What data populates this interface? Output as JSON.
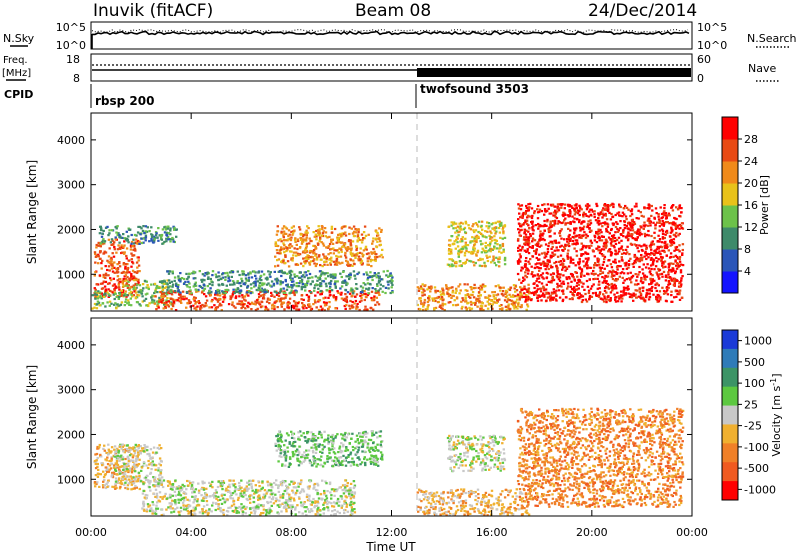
{
  "header": {
    "station": "Inuvik (fitACF)",
    "beam": "Beam 08",
    "date": "24/Dec/2014"
  },
  "top_panels": {
    "nsky_label": "N.Sky",
    "nsky_ticks": [
      "10^5",
      "10^0"
    ],
    "nsearch_label": "N.Search",
    "nsearch_ticks": [
      "10^5",
      "10^0"
    ],
    "freq_label": "Freq.",
    "freq_unit": "[MHz]",
    "freq_ticks": [
      "18",
      "8"
    ],
    "nave_label": "Nave",
    "nave_ticks": [
      "60",
      "0"
    ],
    "cpid_label": "CPID",
    "cpid_segments": [
      {
        "name": "rbsp 200",
        "start_hour": 0
      },
      {
        "name": "twofsound 3503",
        "start_hour": 13
      }
    ]
  },
  "axes": {
    "ylabel": "Slant Range [km]",
    "xlabel": "Time UT",
    "yticks": [
      "1000",
      "2000",
      "3000",
      "4000"
    ],
    "xticks": [
      "00:00",
      "04:00",
      "08:00",
      "12:00",
      "16:00",
      "20:00",
      "00:00"
    ]
  },
  "colorbars": {
    "power": {
      "label": "Power [dB]",
      "ticks": [
        "4",
        "8",
        "12",
        "16",
        "20",
        "24",
        "28"
      ],
      "colors": [
        "#1414ff",
        "#2a55b8",
        "#3e8a6a",
        "#6cc24a",
        "#e8c21a",
        "#f08a1a",
        "#e84a14",
        "#ff0000"
      ]
    },
    "velocity": {
      "label": "Velocity [m s",
      "label_sup": "-1",
      "label_end": "]",
      "ticks": [
        "1000",
        "500",
        "100",
        "25",
        "-25",
        "-100",
        "-500",
        "-1000"
      ],
      "colors": [
        "#1a3ad8",
        "#2f7bb8",
        "#3c9466",
        "#5cc840",
        "#c8c8c8",
        "#f0b030",
        "#f08028",
        "#f05a20",
        "#ff0000"
      ]
    }
  },
  "chart_data": [
    {
      "type": "heatmap",
      "title": "Power",
      "xlabel": "Time UT",
      "ylabel": "Slant Range [km]",
      "xlim_hours": [
        0,
        24
      ],
      "ylim_km": [
        180,
        4600
      ],
      "colorbar_label": "Power [dB]",
      "colorbar_range": [
        0,
        32
      ],
      "echo_regions": [
        {
          "t0": 0.1,
          "t1": 1.9,
          "r0": 500,
          "r1": 1800,
          "value": 26
        },
        {
          "t0": 0.3,
          "t1": 3.4,
          "r0": 1700,
          "r1": 2100,
          "value": 8
        },
        {
          "t0": 0.0,
          "t1": 1.1,
          "r0": 250,
          "r1": 650,
          "value": 14
        },
        {
          "t0": 1.1,
          "t1": 3.2,
          "r0": 300,
          "r1": 900,
          "value": 12
        },
        {
          "t0": 2.5,
          "t1": 11.5,
          "r0": 220,
          "r1": 650,
          "value": 24
        },
        {
          "t0": 3.0,
          "t1": 12.0,
          "r0": 600,
          "r1": 1100,
          "value": 10
        },
        {
          "t0": 7.3,
          "t1": 11.6,
          "r0": 1200,
          "r1": 2100,
          "value": 20
        },
        {
          "t0": 14.2,
          "t1": 16.5,
          "r0": 1200,
          "r1": 2200,
          "value": 16
        },
        {
          "t0": 13.0,
          "t1": 17.5,
          "r0": 220,
          "r1": 800,
          "value": 22
        },
        {
          "t0": 17.0,
          "t1": 23.6,
          "r0": 400,
          "r1": 2600,
          "value": 28
        }
      ]
    },
    {
      "type": "heatmap",
      "title": "Velocity",
      "xlabel": "Time UT",
      "ylabel": "Slant Range [km]",
      "xlim_hours": [
        0,
        24
      ],
      "ylim_km": [
        180,
        4600
      ],
      "colorbar_label": "Velocity [m s-1]",
      "colorbar_range": [
        -1000,
        1000
      ],
      "echo_regions": [
        {
          "t0": 0.1,
          "t1": 1.9,
          "r0": 800,
          "r1": 1800,
          "value": -300
        },
        {
          "t0": 0.9,
          "t1": 2.8,
          "r0": 900,
          "r1": 1800,
          "value": 80
        },
        {
          "t0": 2.0,
          "t1": 10.5,
          "r0": 220,
          "r1": 1000,
          "value": 0
        },
        {
          "t0": 7.3,
          "t1": 11.6,
          "r0": 1300,
          "r1": 2100,
          "value": 300
        },
        {
          "t0": 13.0,
          "t1": 17.5,
          "r0": 220,
          "r1": 800,
          "value": -150
        },
        {
          "t0": 14.2,
          "t1": 16.5,
          "r0": 1200,
          "r1": 2000,
          "value": 100
        },
        {
          "t0": 17.0,
          "t1": 23.6,
          "r0": 400,
          "r1": 2600,
          "value": -450
        }
      ]
    }
  ]
}
